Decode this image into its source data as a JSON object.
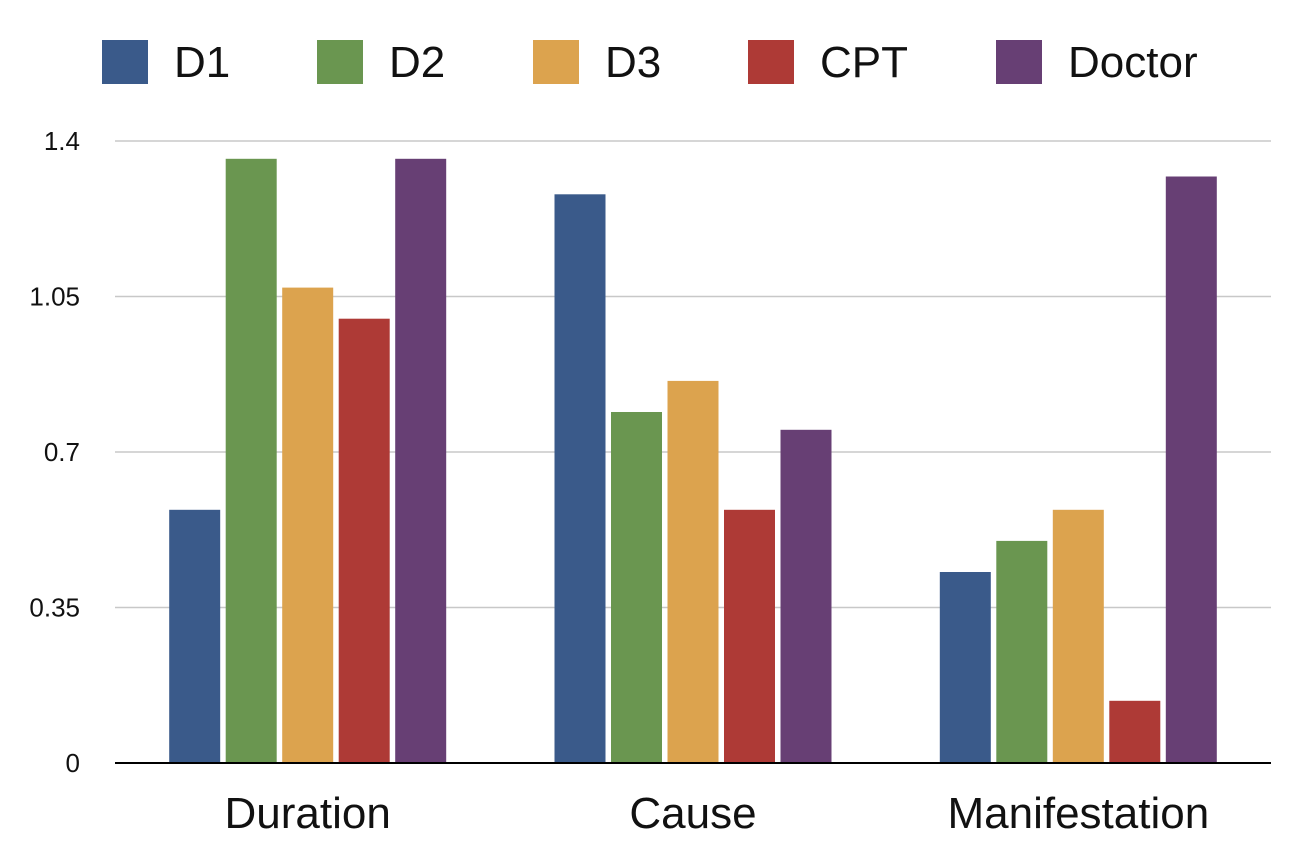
{
  "chart_data": {
    "type": "bar",
    "title": "",
    "xlabel": "",
    "ylabel": "",
    "categories": [
      "Duration",
      "Cause",
      "Manifestation"
    ],
    "series": [
      {
        "name": "D1",
        "color": "#3A5A8A",
        "values": [
          0.57,
          1.28,
          0.43
        ]
      },
      {
        "name": "D2",
        "color": "#6A9650",
        "values": [
          1.36,
          0.79,
          0.5
        ]
      },
      {
        "name": "D3",
        "color": "#DCA34E",
        "values": [
          1.07,
          0.86,
          0.57
        ]
      },
      {
        "name": "CPT",
        "color": "#AE3A36",
        "values": [
          1.0,
          0.57,
          0.14
        ]
      },
      {
        "name": "Doctor",
        "color": "#673F74",
        "values": [
          1.36,
          0.75,
          1.32
        ]
      }
    ],
    "ylim": [
      0,
      1.4
    ],
    "yticks": [
      0,
      0.35,
      0.7,
      1.05,
      1.4
    ],
    "ytick_labels": [
      "0",
      "0.35",
      "0.7",
      "1.05",
      "1.4"
    ],
    "grid": true,
    "legend_position": "top"
  }
}
